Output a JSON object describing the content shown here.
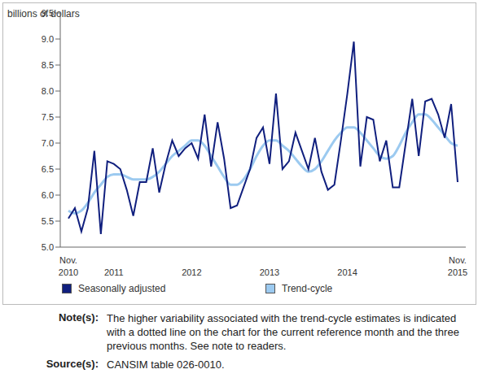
{
  "chart_data": {
    "type": "line",
    "y_label": "billions of dollars",
    "categories": [
      "Nov. 2010",
      null,
      null,
      null,
      null,
      null,
      null,
      "2011",
      null,
      null,
      null,
      null,
      null,
      null,
      null,
      null,
      null,
      null,
      null,
      "2012",
      null,
      null,
      null,
      null,
      null,
      null,
      null,
      null,
      null,
      null,
      null,
      "2013",
      null,
      null,
      null,
      null,
      null,
      null,
      null,
      null,
      null,
      null,
      null,
      "2014",
      null,
      null,
      null,
      null,
      null,
      null,
      null,
      null,
      null,
      null,
      null,
      null,
      null,
      null,
      null,
      null,
      "Nov. 2015"
    ],
    "series": [
      {
        "name": "Seasonally adjusted",
        "color": "#101f7e",
        "values": [
          5.55,
          5.75,
          5.3,
          5.75,
          6.85,
          5.25,
          6.65,
          6.6,
          6.5,
          6.1,
          5.6,
          6.25,
          6.25,
          6.9,
          6.05,
          6.6,
          7.05,
          6.75,
          6.9,
          7.0,
          6.7,
          7.55,
          6.55,
          7.4,
          6.7,
          5.75,
          5.8,
          6.15,
          6.5,
          7.1,
          7.3,
          6.6,
          7.95,
          6.5,
          6.65,
          7.2,
          6.85,
          6.5,
          7.1,
          6.45,
          6.1,
          6.2,
          7.05,
          7.95,
          8.95,
          6.55,
          7.5,
          7.45,
          6.65,
          7.05,
          6.15,
          6.15,
          7.0,
          7.85,
          6.75,
          7.8,
          7.85,
          7.55,
          7.1,
          7.75,
          6.25
        ]
      },
      {
        "name": "Trend-cycle",
        "color": "#9ccaf0",
        "values": [
          5.7,
          5.65,
          5.7,
          5.85,
          6.05,
          6.2,
          6.35,
          6.4,
          6.4,
          6.35,
          6.3,
          6.3,
          6.3,
          6.35,
          6.45,
          6.6,
          6.75,
          6.85,
          6.95,
          7.05,
          7.05,
          6.95,
          6.75,
          6.55,
          6.35,
          6.2,
          6.2,
          6.3,
          6.5,
          6.75,
          6.95,
          7.05,
          7.05,
          6.95,
          6.85,
          6.7,
          6.55,
          6.45,
          6.5,
          6.65,
          6.85,
          7.05,
          7.2,
          7.3,
          7.3,
          7.2,
          7.05,
          6.9,
          6.75,
          6.7,
          6.75,
          6.95,
          7.2,
          7.4,
          7.55,
          7.55,
          7.45,
          7.3,
          7.15,
          7.0,
          6.95
        ]
      }
    ],
    "ylim": [
      5,
      9.5
    ],
    "yticks": [
      {
        "value": 5,
        "label": "5.0"
      },
      5.5,
      {
        "value": 6,
        "label": "6.0"
      },
      6.5,
      {
        "value": 7,
        "label": "7.0"
      },
      7.5,
      {
        "value": 8,
        "label": "8.0"
      },
      8.5,
      {
        "value": 9,
        "label": "9.0"
      },
      9.5
    ],
    "grid": false,
    "legend": "bottom",
    "footnotes": [
      {
        "label": "Note(s):",
        "text": "The higher variability associated with the trend-cycle estimates is indicated with a dotted line on the chart for the current reference month and the three previous months. See note to readers."
      },
      {
        "label": "Source(s):",
        "text": "CANSIM table 026-0010."
      }
    ]
  }
}
